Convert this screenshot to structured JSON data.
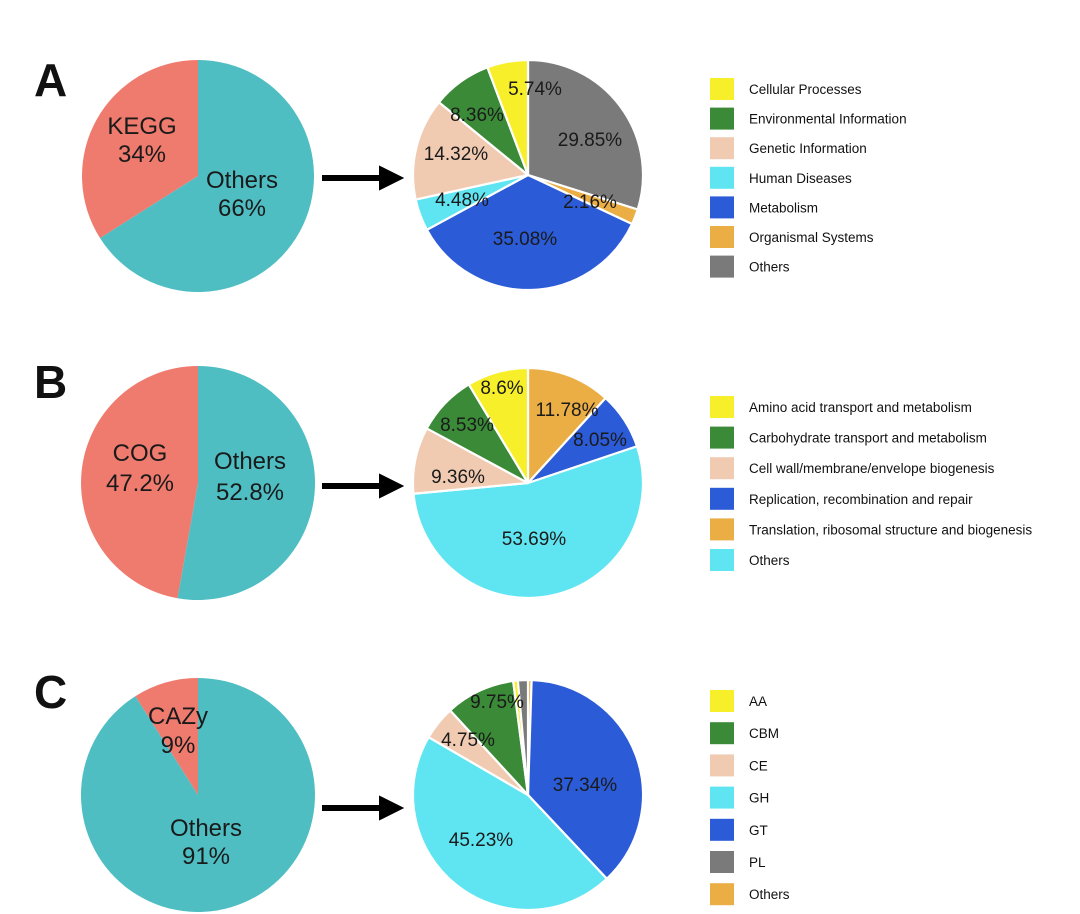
{
  "colors": {
    "overview_annotated": "#ef7b6f",
    "overview_others": "#4ebec3",
    "yellow": "#f7ef2a",
    "green": "#3a8a38",
    "peach": "#f0cbb2",
    "cyan": "#5fe5f2",
    "blue": "#2b5bd6",
    "orange": "#eaae44",
    "gray": "#7a7a7a"
  },
  "chart_data": [
    {
      "panel": "A",
      "type": "pie",
      "role": "overview",
      "slices": [
        {
          "name": "KEGG",
          "value": 34,
          "label": "34%",
          "color": "#ef7b6f"
        },
        {
          "name": "Others",
          "value": 66,
          "label": "66%",
          "color": "#4ebec3"
        }
      ]
    },
    {
      "panel": "A",
      "type": "pie",
      "role": "breakdown",
      "slices": [
        {
          "name": "Others",
          "value": 29.85,
          "label": "29.85%",
          "color": "#7a7a7a"
        },
        {
          "name": "Organismal Systems",
          "value": 2.16,
          "label": "2.16%",
          "color": "#eaae44"
        },
        {
          "name": "Metabolism",
          "value": 35.08,
          "label": "35.08%",
          "color": "#2b5bd6"
        },
        {
          "name": "Human Diseases",
          "value": 4.48,
          "label": "4.48%",
          "color": "#5fe5f2"
        },
        {
          "name": "Genetic Information",
          "value": 14.32,
          "label": "14.32%",
          "color": "#f0cbb2"
        },
        {
          "name": "Environmental Information",
          "value": 8.36,
          "label": "8.36%",
          "color": "#3a8a38"
        },
        {
          "name": "Cellular Processes",
          "value": 5.74,
          "label": "5.74%",
          "color": "#f7ef2a"
        }
      ],
      "legend": [
        {
          "name": "Cellular Processes",
          "color": "#f7ef2a"
        },
        {
          "name": "Environmental Information",
          "color": "#3a8a38"
        },
        {
          "name": "Genetic Information",
          "color": "#f0cbb2"
        },
        {
          "name": "Human Diseases",
          "color": "#5fe5f2"
        },
        {
          "name": "Metabolism",
          "color": "#2b5bd6"
        },
        {
          "name": "Organismal Systems",
          "color": "#eaae44"
        },
        {
          "name": "Others",
          "color": "#7a7a7a"
        }
      ]
    },
    {
      "panel": "B",
      "type": "pie",
      "role": "overview",
      "slices": [
        {
          "name": "COG",
          "value": 47.2,
          "label": "47.2%",
          "color": "#ef7b6f"
        },
        {
          "name": "Others",
          "value": 52.8,
          "label": "52.8%",
          "color": "#4ebec3"
        }
      ]
    },
    {
      "panel": "B",
      "type": "pie",
      "role": "breakdown",
      "slices": [
        {
          "name": "Translation, ribosomal structure and biogenesis",
          "value": 11.78,
          "label": "11.78%",
          "color": "#eaae44"
        },
        {
          "name": "Replication, recombination and repair",
          "value": 8.05,
          "label": "8.05%",
          "color": "#2b5bd6"
        },
        {
          "name": "Others",
          "value": 53.69,
          "label": "53.69%",
          "color": "#5fe5f2"
        },
        {
          "name": "Cell wall/membrane/envelope biogenesis",
          "value": 9.36,
          "label": "9.36%",
          "color": "#f0cbb2"
        },
        {
          "name": "Carbohydrate transport and metabolism",
          "value": 8.53,
          "label": "8.53%",
          "color": "#3a8a38"
        },
        {
          "name": "Amino acid transport and metabolism",
          "value": 8.6,
          "label": "8.6%",
          "color": "#f7ef2a"
        }
      ],
      "legend": [
        {
          "name": "Amino acid transport and metabolism",
          "color": "#f7ef2a"
        },
        {
          "name": "Carbohydrate transport and metabolism",
          "color": "#3a8a38"
        },
        {
          "name": "Cell wall/membrane/envelope biogenesis",
          "color": "#f0cbb2"
        },
        {
          "name": "Replication, recombination and repair",
          "color": "#2b5bd6"
        },
        {
          "name": "Translation, ribosomal structure and biogenesis",
          "color": "#eaae44"
        },
        {
          "name": "Others",
          "color": "#5fe5f2"
        }
      ]
    },
    {
      "panel": "C",
      "type": "pie",
      "role": "overview",
      "slices": [
        {
          "name": "CAZy",
          "value": 9,
          "label": "9%",
          "color": "#ef7b6f"
        },
        {
          "name": "Others",
          "value": 91,
          "label": "91%",
          "color": "#4ebec3"
        }
      ]
    },
    {
      "panel": "C",
      "type": "pie",
      "role": "breakdown",
      "slices": [
        {
          "name": "Others",
          "value": 0.5,
          "label": "",
          "color": "#eaae44"
        },
        {
          "name": "GT",
          "value": 37.34,
          "label": "37.34%",
          "color": "#2b5bd6"
        },
        {
          "name": "GH",
          "value": 45.23,
          "label": "45.23%",
          "color": "#5fe5f2"
        },
        {
          "name": "CE",
          "value": 4.75,
          "label": "4.75%",
          "color": "#f0cbb2"
        },
        {
          "name": "CBM",
          "value": 9.75,
          "label": "9.75%",
          "color": "#3a8a38"
        },
        {
          "name": "AA",
          "value": 0.65,
          "label": "",
          "color": "#f7ef2a"
        },
        {
          "name": "PL",
          "value": 1.4,
          "label": "",
          "color": "#7a7a7a"
        }
      ],
      "legend": [
        {
          "name": "AA",
          "color": "#f7ef2a"
        },
        {
          "name": "CBM",
          "color": "#3a8a38"
        },
        {
          "name": "CE",
          "color": "#f0cbb2"
        },
        {
          "name": "GH",
          "color": "#5fe5f2"
        },
        {
          "name": "GT",
          "color": "#2b5bd6"
        },
        {
          "name": "PL",
          "color": "#7a7a7a"
        },
        {
          "name": "Others",
          "color": "#eaae44"
        }
      ]
    }
  ]
}
